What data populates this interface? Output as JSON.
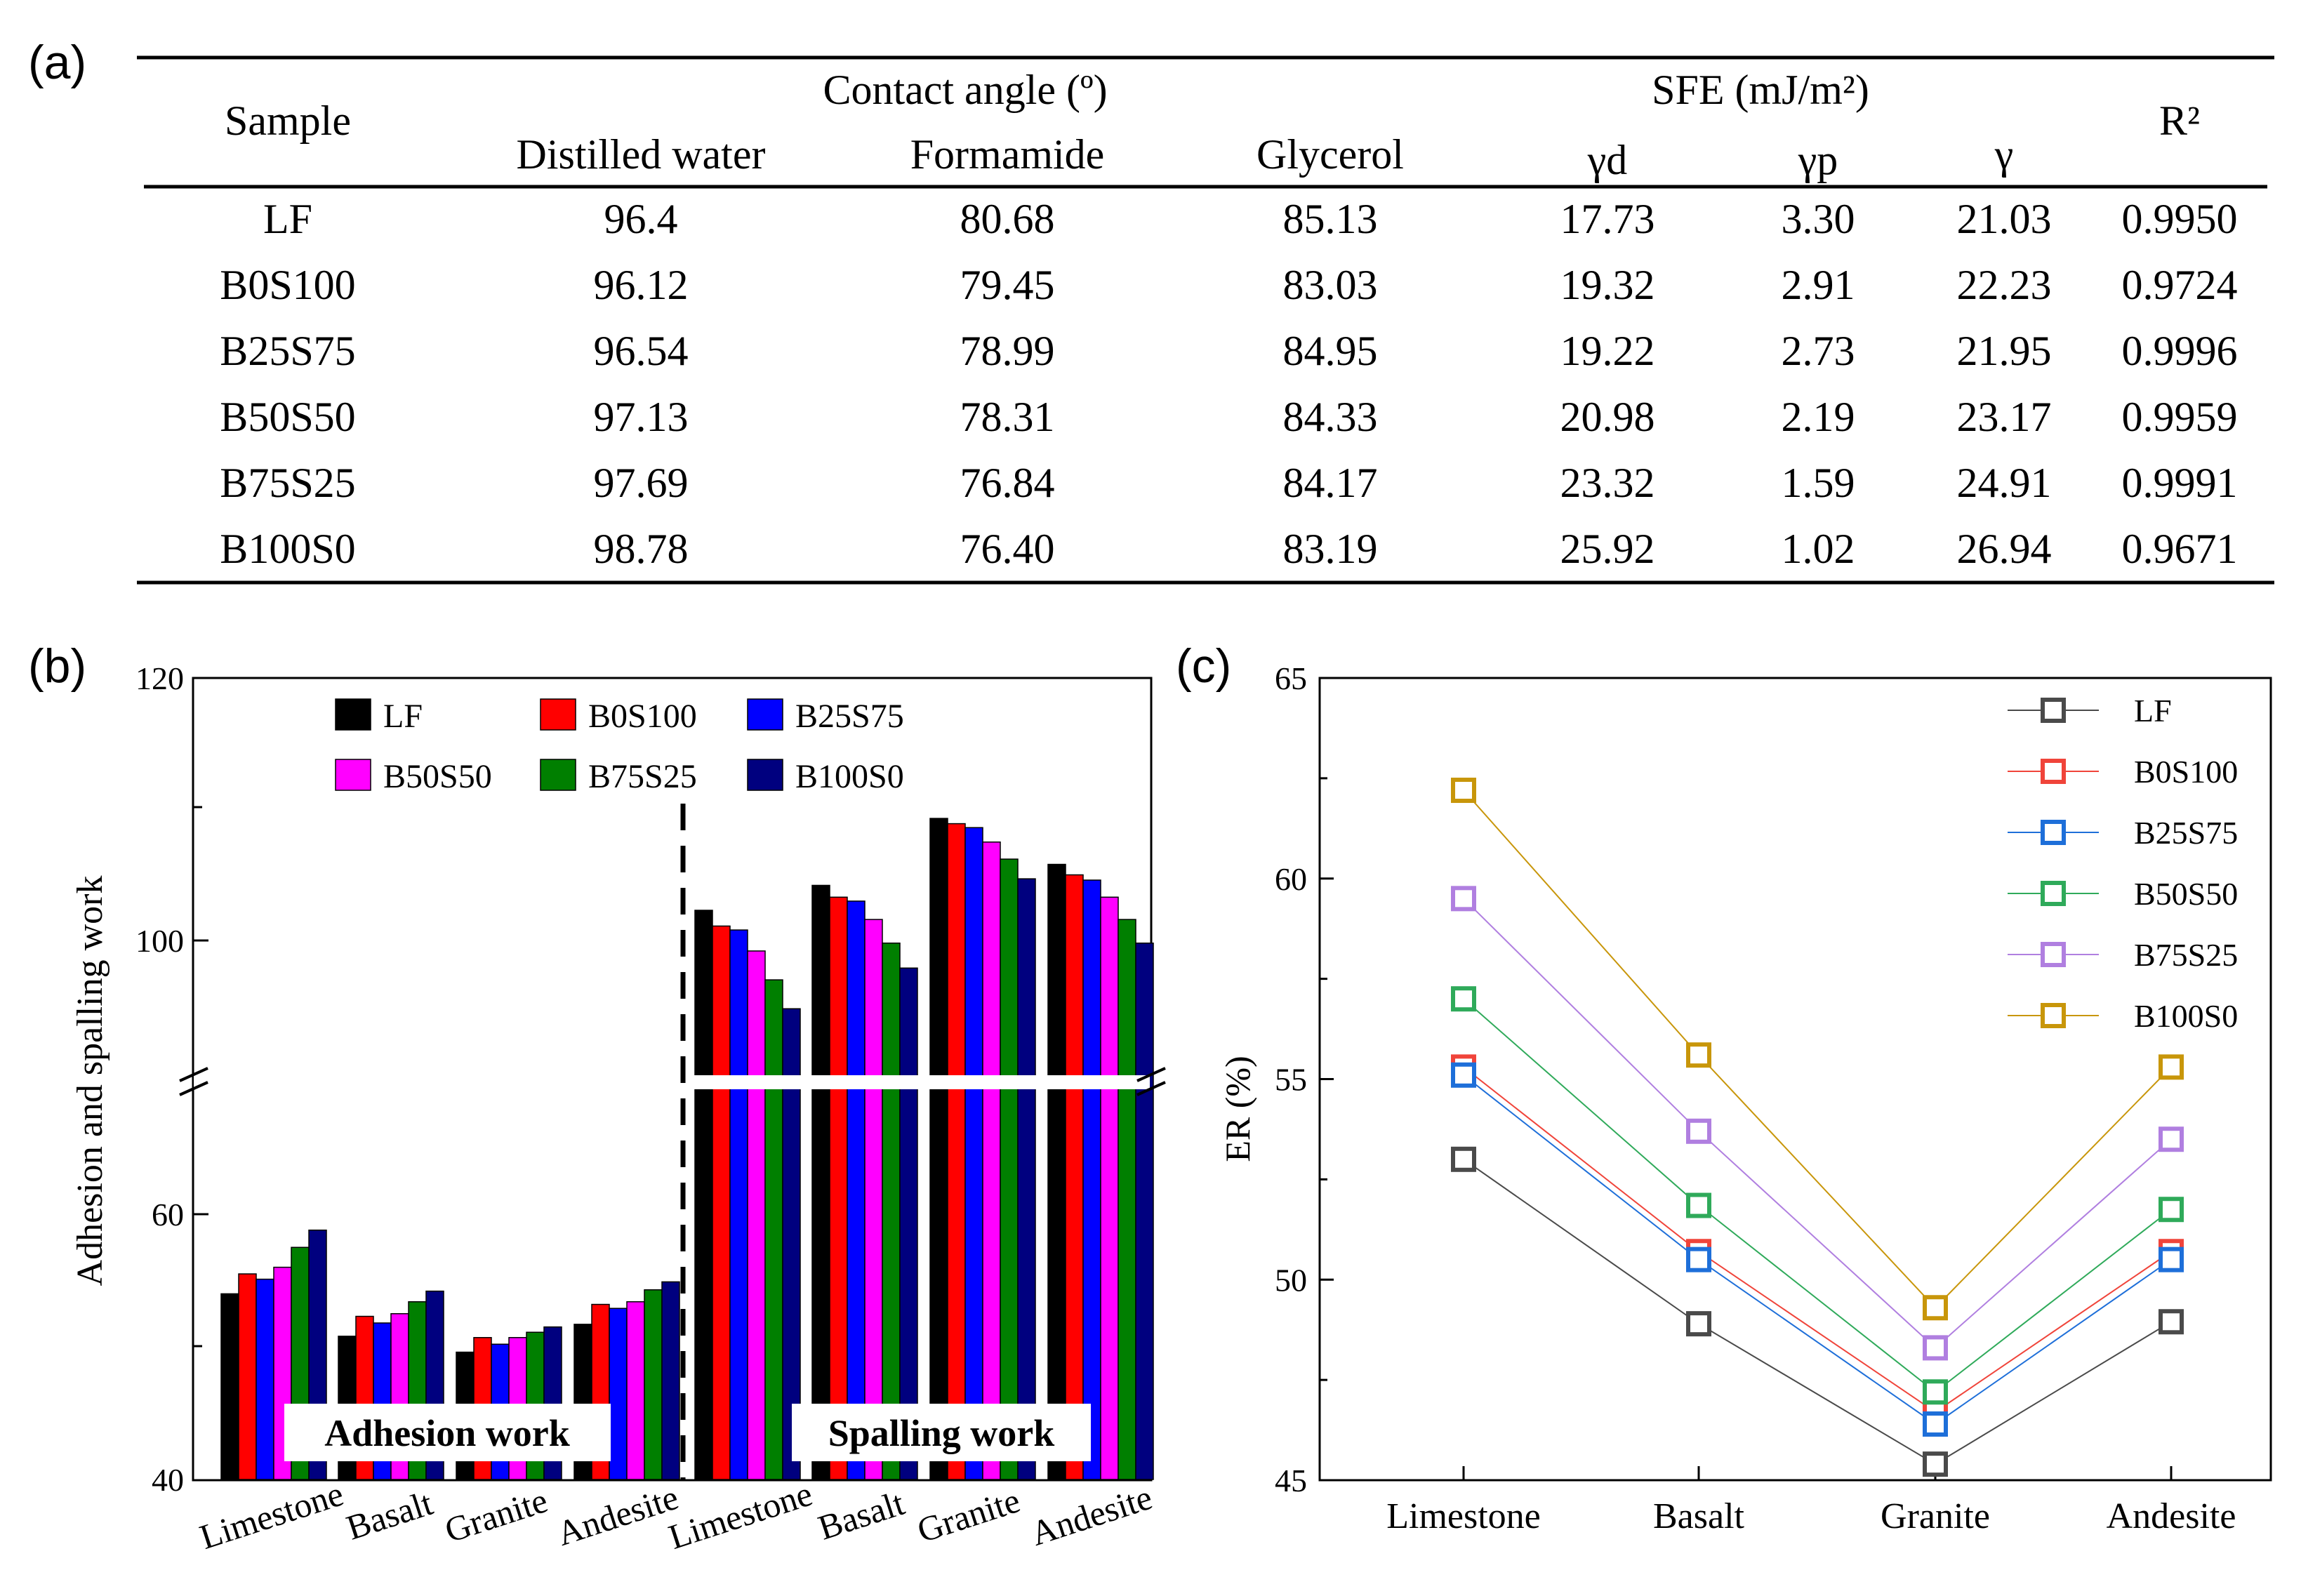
{
  "panel_labels": [
    "(a)",
    "(b)",
    "(c)"
  ],
  "table": {
    "header": {
      "sample": "Sample",
      "contact_angle": "Contact angle (º)",
      "sfe": "SFE (mJ/m²)",
      "r2": "R²",
      "sub": [
        "Distilled water",
        "Formamide",
        "Glycerol",
        "γd",
        "γp",
        "γ"
      ]
    },
    "rows": [
      [
        "LF",
        "96.4",
        "80.68",
        "85.13",
        "17.73",
        "3.30",
        "21.03",
        "0.9950"
      ],
      [
        "B0S100",
        "96.12",
        "79.45",
        "83.03",
        "19.32",
        "2.91",
        "22.23",
        "0.9724"
      ],
      [
        "B25S75",
        "96.54",
        "78.99",
        "84.95",
        "19.22",
        "2.73",
        "21.95",
        "0.9996"
      ],
      [
        "B50S50",
        "97.13",
        "78.31",
        "84.33",
        "20.98",
        "2.19",
        "23.17",
        "0.9959"
      ],
      [
        "B75S25",
        "97.69",
        "76.84",
        "84.17",
        "23.32",
        "1.59",
        "24.91",
        "0.9991"
      ],
      [
        "B100S0",
        "98.78",
        "76.40",
        "83.19",
        "25.92",
        "1.02",
        "26.94",
        "0.9671"
      ]
    ]
  },
  "chart_data": [
    {
      "type": "bar",
      "panel": "(b)",
      "ylabel": "Adhesion and spalling work",
      "yticks": [
        "40",
        "60",
        "100",
        "120"
      ],
      "axis_break": "between 60 and 100",
      "categories": [
        "Limestone",
        "Basalt",
        "Granite",
        "Andesite",
        "Limestone",
        "Basalt",
        "Granite",
        "Andesite"
      ],
      "group_labels": [
        "Adhesion work",
        "Spalling work"
      ],
      "series": [
        {
          "name": "LF",
          "color": "#000000",
          "adhesion": [
            54.0,
            50.8,
            49.6,
            51.7
          ],
          "spalling": [
            102.3,
            104.2,
            109.3,
            105.8
          ]
        },
        {
          "name": "B0S100",
          "color": "#ff0000",
          "adhesion": [
            55.5,
            52.3,
            50.7,
            53.2
          ],
          "spalling": [
            101.1,
            103.3,
            108.9,
            105.0
          ]
        },
        {
          "name": "B25S75",
          "color": "#0000ff",
          "adhesion": [
            55.1,
            51.8,
            50.2,
            52.9
          ],
          "spalling": [
            100.8,
            103.0,
            108.6,
            104.6
          ]
        },
        {
          "name": "B50S50",
          "color": "#ff00ff",
          "adhesion": [
            56.0,
            52.5,
            50.7,
            53.4
          ],
          "spalling": [
            99.2,
            101.6,
            107.5,
            103.3
          ]
        },
        {
          "name": "B75S25",
          "color": "#007f00",
          "adhesion": [
            57.5,
            53.4,
            51.1,
            54.3
          ],
          "spalling": [
            97.0,
            99.8,
            106.2,
            101.6
          ]
        },
        {
          "name": "B100S0",
          "color": "#00007f",
          "adhesion": [
            58.8,
            54.2,
            51.5,
            54.9
          ],
          "spalling": [
            94.8,
            97.9,
            104.7,
            99.8
          ]
        }
      ]
    },
    {
      "type": "line",
      "panel": "(c)",
      "ylabel": "ER (%)",
      "xlabel": "",
      "categories": [
        "Limestone",
        "Basalt",
        "Granite",
        "Andesite"
      ],
      "ylim": [
        45,
        65
      ],
      "yticks": [
        45,
        50,
        55,
        60,
        65
      ],
      "legend_position": "top-right",
      "series": [
        {
          "name": "LF",
          "color": "#4a4a4a",
          "values": [
            53.0,
            48.9,
            45.4,
            48.95
          ]
        },
        {
          "name": "B0S100",
          "color": "#f0443a",
          "values": [
            55.3,
            50.7,
            46.7,
            50.7
          ]
        },
        {
          "name": "B25S75",
          "color": "#1e6fd9",
          "values": [
            55.1,
            50.5,
            46.4,
            50.5
          ]
        },
        {
          "name": "B50S50",
          "color": "#2faa5a",
          "values": [
            57.0,
            51.85,
            47.2,
            51.75
          ]
        },
        {
          "name": "B75S25",
          "color": "#b07fe0",
          "values": [
            59.5,
            53.7,
            48.3,
            53.5
          ]
        },
        {
          "name": "B100S0",
          "color": "#c8960a",
          "values": [
            62.2,
            55.6,
            49.3,
            55.3
          ]
        }
      ]
    }
  ]
}
